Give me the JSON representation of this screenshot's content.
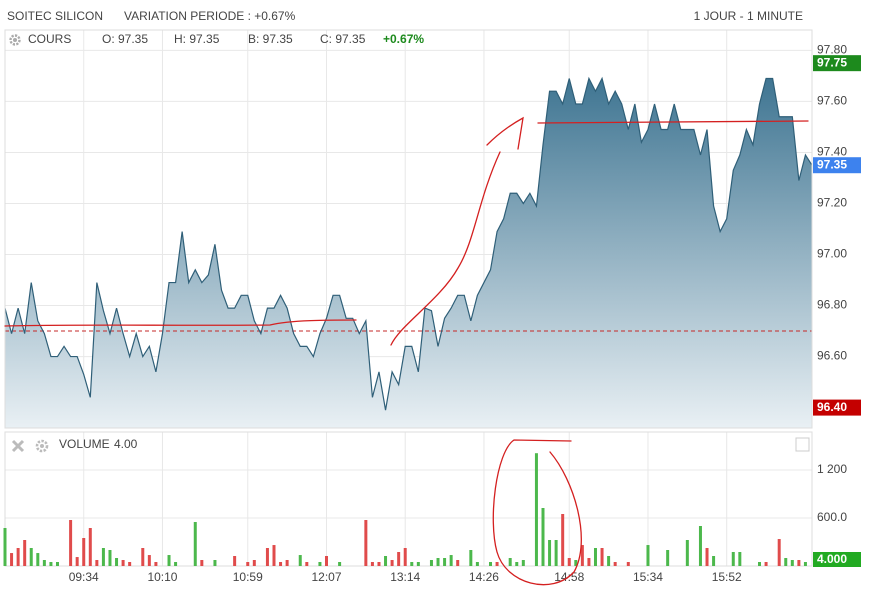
{
  "header": {
    "title": "SOITEC SILICON",
    "variation": "VARIATION PERIODE : +0.67%",
    "period": "1 JOUR - 1 MINUTE"
  },
  "chart_data": {
    "type": "line",
    "series_label": "COURS",
    "ohlc": [
      "O: 97.35",
      "H: 97.35",
      "B: 97.35",
      "C: 97.35"
    ],
    "change": "+0.67%",
    "color": "#2f5f78",
    "values": [
      96.79,
      96.69,
      96.79,
      96.69,
      96.89,
      96.74,
      96.69,
      96.6,
      96.6,
      96.64,
      96.6,
      96.6,
      96.53,
      96.44,
      96.89,
      96.78,
      96.69,
      96.79,
      96.69,
      96.6,
      96.69,
      96.6,
      96.64,
      96.54,
      96.69,
      96.89,
      96.89,
      97.09,
      96.89,
      96.94,
      96.89,
      96.92,
      97.04,
      96.86,
      96.79,
      96.79,
      96.84,
      96.84,
      96.74,
      96.69,
      96.79,
      96.79,
      96.84,
      96.79,
      96.69,
      96.64,
      96.64,
      96.6,
      96.69,
      96.75,
      96.84,
      96.84,
      96.75,
      96.75,
      96.69,
      96.74,
      96.44,
      96.54,
      96.39,
      96.54,
      96.49,
      96.64,
      96.64,
      96.54,
      96.79,
      96.78,
      96.64,
      96.75,
      96.79,
      96.84,
      96.84,
      96.74,
      96.84,
      96.89,
      96.94,
      97.09,
      97.14,
      97.24,
      97.24,
      97.2,
      97.24,
      97.19,
      97.43,
      97.64,
      97.64,
      97.59,
      97.69,
      97.59,
      97.59,
      97.69,
      97.64,
      97.69,
      97.59,
      97.64,
      97.59,
      97.49,
      97.59,
      97.44,
      97.49,
      97.59,
      97.49,
      97.49,
      97.59,
      97.49,
      97.49,
      97.49,
      97.39,
      97.49,
      97.19,
      97.09,
      97.14,
      97.33,
      97.39,
      97.49,
      97.43,
      97.59,
      97.69,
      97.69,
      97.54,
      97.54,
      97.54,
      97.29,
      97.39,
      97.35
    ],
    "xlim": [
      0,
      123
    ],
    "xticks": [
      {
        "value": 12,
        "label": "09:34"
      },
      {
        "value": 24,
        "label": "10:10"
      },
      {
        "value": 37,
        "label": "10:59"
      },
      {
        "value": 49,
        "label": "12:07"
      },
      {
        "value": 61,
        "label": "13:14"
      },
      {
        "value": 73,
        "label": "14:26"
      },
      {
        "value": 86,
        "label": "14:58"
      },
      {
        "value": 98,
        "label": "15:34"
      },
      {
        "value": 110,
        "label": "15:52"
      }
    ],
    "ylim": [
      96.32,
      97.88
    ],
    "yticks": [
      {
        "value": 97.8,
        "label": "97.80"
      },
      {
        "value": 97.6,
        "label": "97.60"
      },
      {
        "value": 97.4,
        "label": "97.40"
      },
      {
        "value": 97.2,
        "label": "97.20"
      },
      {
        "value": 97.0,
        "label": "97.00"
      },
      {
        "value": 96.8,
        "label": "96.80"
      },
      {
        "value": 96.6,
        "label": "96.60"
      }
    ],
    "grid": true,
    "reference_line": 96.7,
    "badges": [
      {
        "value": 97.75,
        "label": "97.75",
        "color": "#1d8a1d"
      },
      {
        "value": 97.35,
        "label": "97.35",
        "color": "#3d82ee"
      },
      {
        "value": 96.4,
        "label": "96.40",
        "color": "#c40000"
      }
    ],
    "volume": {
      "type": "bar",
      "label": "VOLUME",
      "current": {
        "value": 4,
        "label": "4.00"
      },
      "values": [
        475,
        162,
        225,
        325,
        225,
        162,
        75,
        50,
        50,
        null,
        575,
        112,
        350,
        475,
        75,
        225,
        200,
        100,
        75,
        50,
        null,
        225,
        137,
        50,
        null,
        137,
        50,
        null,
        null,
        550,
        75,
        null,
        75,
        null,
        null,
        125,
        null,
        50,
        75,
        null,
        225,
        262,
        50,
        75,
        null,
        137,
        50,
        null,
        50,
        125,
        null,
        50,
        null,
        null,
        null,
        575,
        50,
        50,
        125,
        75,
        175,
        225,
        50,
        50,
        null,
        75,
        100,
        100,
        137,
        75,
        null,
        200,
        50,
        null,
        50,
        50,
        null,
        100,
        50,
        75,
        null,
        1410,
        725,
        325,
        325,
        650,
        100,
        75,
        262,
        100,
        225,
        225,
        125,
        50,
        null,
        50,
        null,
        null,
        262,
        null,
        null,
        200,
        null,
        null,
        325,
        null,
        500,
        225,
        125,
        null,
        null,
        175,
        175,
        null,
        null,
        50,
        50,
        null,
        337,
        100,
        75,
        75,
        50,
        null
      ],
      "colors": [
        "#4cb84c",
        "#e04b4b",
        "#e04b4b",
        "#e04b4b",
        "#4cb84c",
        "#4cb84c",
        "#4cb84c",
        "#4cb84c",
        "#4cb84c",
        null,
        "#e04b4b",
        "#e04b4b",
        "#e04b4b",
        "#e04b4b",
        "#e04b4b",
        "#4cb84c",
        "#4cb84c",
        "#4cb84c",
        "#e04b4b",
        "#e04b4b",
        null,
        "#e04b4b",
        "#e04b4b",
        "#e04b4b",
        null,
        "#4cb84c",
        "#4cb84c",
        null,
        null,
        "#4cb84c",
        "#e04b4b",
        null,
        "#4cb84c",
        null,
        null,
        "#e04b4b",
        null,
        "#e04b4b",
        "#e04b4b",
        null,
        "#e04b4b",
        "#e04b4b",
        "#e04b4b",
        "#e04b4b",
        null,
        "#4cb84c",
        "#e04b4b",
        null,
        "#4cb84c",
        "#e04b4b",
        null,
        "#4cb84c",
        null,
        null,
        null,
        "#e04b4b",
        "#e04b4b",
        "#e04b4b",
        "#4cb84c",
        "#e04b4b",
        "#e04b4b",
        "#e04b4b",
        "#4cb84c",
        "#4cb84c",
        null,
        "#4cb84c",
        "#4cb84c",
        "#4cb84c",
        "#4cb84c",
        "#e04b4b",
        null,
        "#4cb84c",
        "#4cb84c",
        null,
        "#4cb84c",
        "#e04b4b",
        null,
        "#4cb84c",
        "#4cb84c",
        "#4cb84c",
        null,
        "#4cb84c",
        "#4cb84c",
        "#4cb84c",
        "#4cb84c",
        "#e04b4b",
        "#e04b4b",
        "#4cb84c",
        "#e04b4b",
        "#e04b4b",
        "#4cb84c",
        "#e04b4b",
        "#4cb84c",
        "#e04b4b",
        null,
        "#e04b4b",
        null,
        null,
        "#4cb84c",
        null,
        null,
        "#4cb84c",
        null,
        null,
        "#4cb84c",
        null,
        "#4cb84c",
        "#e04b4b",
        "#4cb84c",
        null,
        null,
        "#4cb84c",
        "#4cb84c",
        null,
        null,
        "#4cb84c",
        "#e04b4b",
        null,
        "#e04b4b",
        "#4cb84c",
        "#4cb84c",
        "#e04b4b",
        "#4cb84c",
        null
      ],
      "ylim": [
        0,
        1675
      ],
      "yticks": [
        {
          "value": 1200,
          "label": "1 200"
        },
        {
          "value": 600,
          "label": "600.0"
        }
      ],
      "badge": {
        "value": 4,
        "label": "4.000",
        "color": "#22aa22"
      }
    }
  }
}
